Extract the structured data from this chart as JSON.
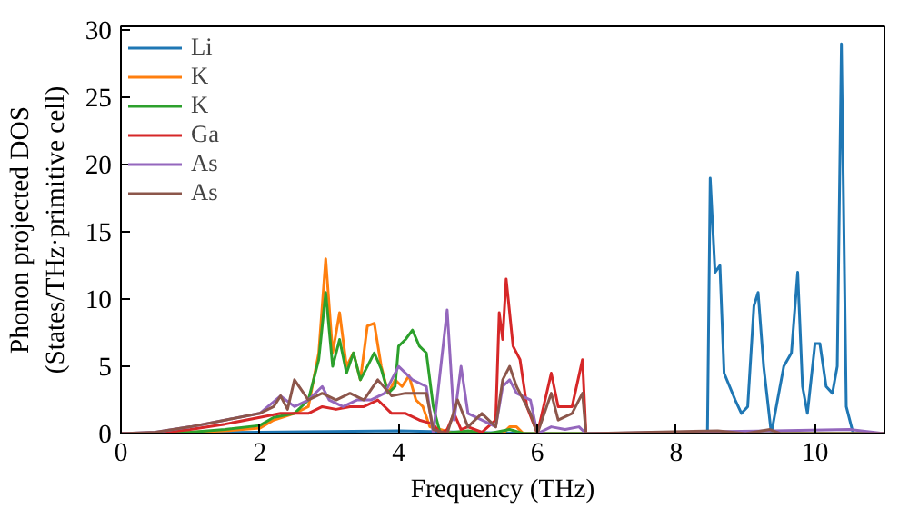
{
  "chart_data": {
    "type": "line",
    "xlabel": "Frequency (THz)",
    "ylabel": "Phonon projected DOS\n(States/THz·primitive cell)",
    "xlim": [
      0,
      11
    ],
    "ylim": [
      0,
      30.3
    ],
    "xticks": [
      0,
      2,
      4,
      6,
      8,
      10
    ],
    "yticks": [
      0,
      5,
      10,
      15,
      20,
      25,
      30
    ],
    "grid": false,
    "legend": "top left",
    "marker": "none",
    "line_style": "solid",
    "series": [
      {
        "name": "Li",
        "color": "#1f77b4",
        "x": [
          0,
          2,
          4,
          6,
          8,
          8.45,
          8.49,
          8.56,
          8.63,
          8.69,
          8.85,
          8.94,
          9.03,
          9.12,
          9.18,
          9.26,
          9.37,
          9.55,
          9.66,
          9.75,
          9.82,
          9.89,
          10.0,
          10.07,
          10.16,
          10.25,
          10.32,
          10.38,
          10.45,
          10.55,
          11
        ],
        "values": [
          0,
          0.1,
          0.2,
          0,
          0,
          0,
          19,
          12,
          12.5,
          4.5,
          2.5,
          1.5,
          2,
          9.5,
          10.5,
          5,
          0,
          5,
          6,
          12,
          3.5,
          1.5,
          6.7,
          6.7,
          3.5,
          3,
          5,
          29,
          2,
          0,
          0
        ]
      },
      {
        "name": "K",
        "color": "#ff7f0e",
        "x": [
          0,
          0.5,
          1,
          1.5,
          2,
          2.2,
          2.5,
          2.7,
          2.85,
          2.95,
          3.05,
          3.15,
          3.25,
          3.35,
          3.45,
          3.55,
          3.65,
          3.75,
          3.85,
          3.95,
          4.05,
          4.15,
          4.25,
          4.35,
          4.45,
          4.6,
          4.8,
          5.5,
          5.6,
          5.7,
          5.8,
          11
        ],
        "values": [
          0,
          0,
          0.1,
          0.2,
          0.4,
          1,
          1.5,
          2,
          6,
          13,
          6,
          9,
          5,
          6,
          4,
          8,
          8.2,
          5,
          3,
          4,
          3.5,
          4.3,
          2.5,
          2,
          0.5,
          0.3,
          0,
          0,
          0.5,
          0.5,
          0,
          0
        ]
      },
      {
        "name": "K",
        "color": "#2ca02c",
        "x": [
          0,
          0.5,
          1,
          1.5,
          2,
          2.2,
          2.5,
          2.7,
          2.85,
          2.95,
          3.05,
          3.15,
          3.25,
          3.35,
          3.45,
          3.55,
          3.65,
          3.75,
          3.85,
          3.95,
          4.0,
          4.1,
          4.2,
          4.3,
          4.4,
          4.5,
          4.6,
          5.0,
          5.3,
          5.6,
          5.8,
          11
        ],
        "values": [
          0,
          0,
          0.1,
          0.3,
          0.6,
          1.2,
          1.5,
          2.5,
          5.5,
          10.5,
          5,
          7,
          4.5,
          6,
          4,
          5,
          6,
          4.8,
          3,
          3.5,
          6.5,
          7,
          7.7,
          6.5,
          6,
          2,
          0,
          0.2,
          0,
          0.3,
          0,
          0
        ]
      },
      {
        "name": "Ga",
        "color": "#d62728",
        "x": [
          0,
          0.5,
          1,
          1.5,
          2,
          2.3,
          2.5,
          2.7,
          2.9,
          3.1,
          3.3,
          3.5,
          3.7,
          3.9,
          4.1,
          4.3,
          4.5,
          4.6,
          4.7,
          4.8,
          4.9,
          5.0,
          5.2,
          5.4,
          5.45,
          5.5,
          5.55,
          5.65,
          5.75,
          5.85,
          6.0,
          6.2,
          6.3,
          6.5,
          6.65,
          6.7
        ],
        "values": [
          0,
          0,
          0.3,
          0.7,
          1.2,
          1.5,
          1.5,
          1.5,
          2,
          1.8,
          2,
          2,
          2.5,
          1.5,
          1.5,
          1,
          0.7,
          0,
          0.3,
          1.5,
          0.3,
          0.5,
          0.1,
          1,
          9,
          7,
          11.5,
          6.5,
          5.5,
          2,
          0,
          4.5,
          2,
          2,
          5.5,
          0
        ]
      },
      {
        "name": "As",
        "color": "#9467bd",
        "x": [
          0,
          0.5,
          1,
          1.5,
          2,
          2.3,
          2.5,
          2.7,
          2.9,
          3.0,
          3.2,
          3.4,
          3.6,
          3.8,
          4.0,
          4.2,
          4.4,
          4.5,
          4.7,
          4.8,
          4.9,
          5.0,
          5.2,
          5.4,
          5.5,
          5.6,
          5.7,
          5.9,
          6.0,
          6.2,
          6.4,
          6.6,
          6.7,
          9.4,
          10.5,
          11
        ],
        "values": [
          0,
          0.1,
          0.5,
          1,
          1.5,
          2.8,
          2,
          2.5,
          3.5,
          2.5,
          2,
          2.5,
          2.5,
          3,
          5,
          4,
          3.5,
          0,
          9.2,
          1,
          5,
          1.5,
          1,
          0.5,
          3.5,
          4,
          3,
          2.5,
          0,
          0.5,
          0.3,
          0.5,
          0,
          0.2,
          0.3,
          0
        ]
      },
      {
        "name": "As",
        "color": "#8c564b",
        "x": [
          0,
          0.5,
          1,
          1.5,
          2,
          2.2,
          2.3,
          2.4,
          2.5,
          2.7,
          2.9,
          3.1,
          3.3,
          3.5,
          3.7,
          3.9,
          4.1,
          4.3,
          4.4,
          4.5,
          4.7,
          4.85,
          5.0,
          5.2,
          5.4,
          5.5,
          5.6,
          5.7,
          5.9,
          6.0,
          6.2,
          6.3,
          6.5,
          6.65,
          6.7,
          8.6,
          9.0,
          9.35,
          9.5,
          11
        ],
        "values": [
          0,
          0.1,
          0.5,
          1,
          1.5,
          2,
          2.8,
          1.8,
          4,
          2.5,
          3,
          2.5,
          3,
          2.5,
          4,
          2.8,
          3,
          3,
          3,
          0.3,
          0,
          2.5,
          0.5,
          1.5,
          0.5,
          4,
          5,
          3.5,
          1.5,
          0,
          3,
          1,
          1.5,
          3,
          0,
          0.2,
          0,
          0.3,
          0,
          0
        ]
      }
    ]
  }
}
